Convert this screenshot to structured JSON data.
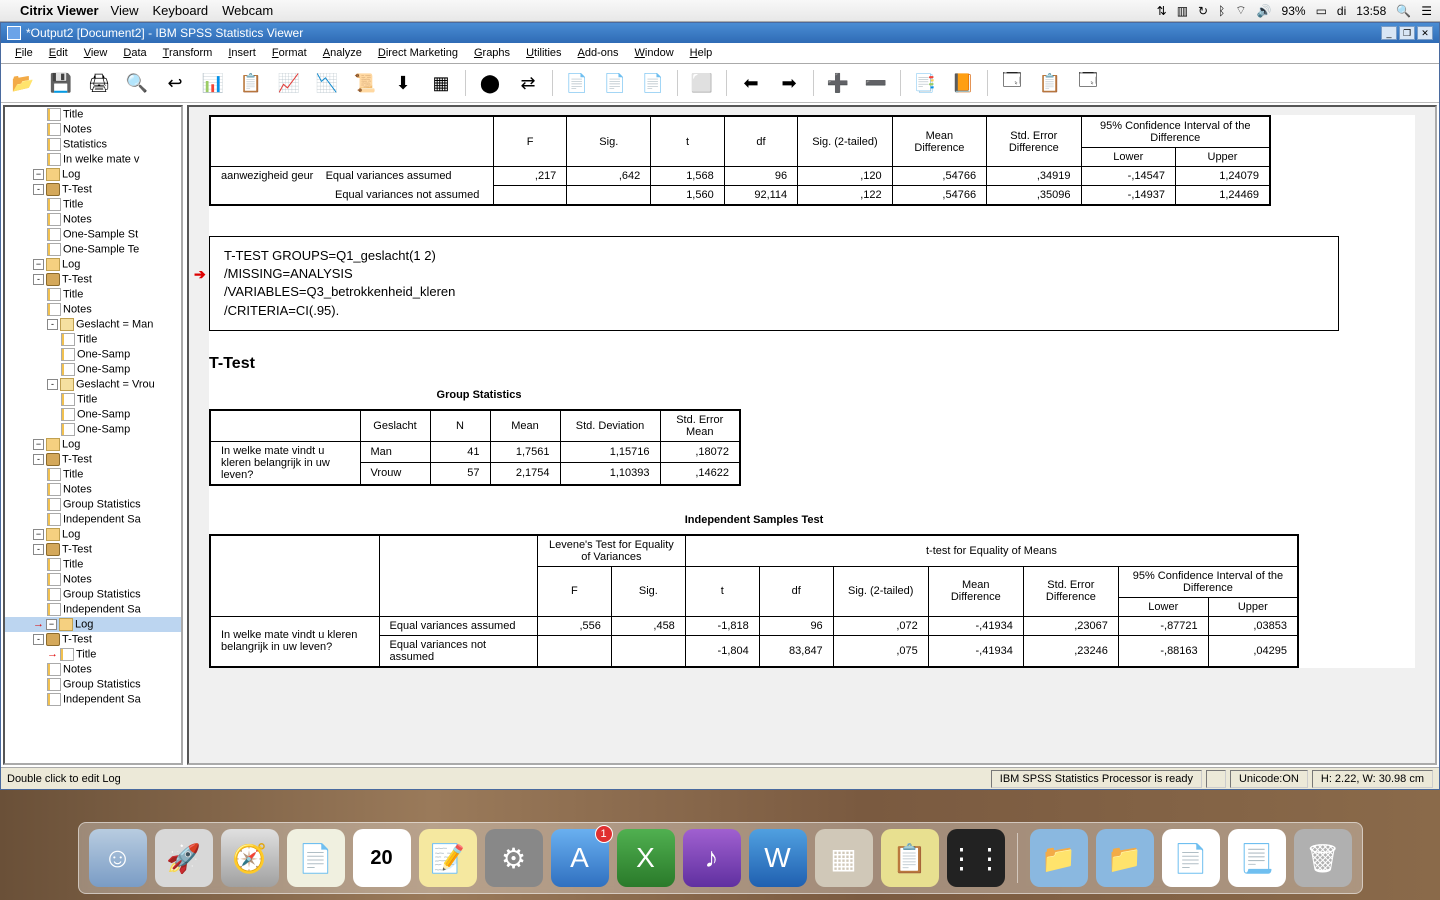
{
  "mac": {
    "app": "Citrix Viewer",
    "menus": [
      "View",
      "Keyboard",
      "Webcam"
    ],
    "battery": "93%",
    "day": "di",
    "time": "13:58"
  },
  "window": {
    "title": "*Output2 [Document2] - IBM SPSS Statistics Viewer"
  },
  "menus": [
    "File",
    "Edit",
    "View",
    "Data",
    "Transform",
    "Insert",
    "Format",
    "Analyze",
    "Direct Marketing",
    "Graphs",
    "Utilities",
    "Add-ons",
    "Window",
    "Help"
  ],
  "tree": [
    {
      "d": 3,
      "ico": "page",
      "label": "Title"
    },
    {
      "d": 3,
      "ico": "page",
      "label": "Notes"
    },
    {
      "d": 3,
      "ico": "stat",
      "label": "Statistics"
    },
    {
      "d": 3,
      "ico": "stat",
      "label": "In welke mate v"
    },
    {
      "d": 2,
      "ico": "log",
      "label": "Log",
      "tog": ""
    },
    {
      "d": 2,
      "ico": "book",
      "label": "T-Test",
      "tog": "-"
    },
    {
      "d": 3,
      "ico": "page",
      "label": "Title"
    },
    {
      "d": 3,
      "ico": "page",
      "label": "Notes"
    },
    {
      "d": 3,
      "ico": "stat",
      "label": "One-Sample St"
    },
    {
      "d": 3,
      "ico": "stat",
      "label": "One-Sample Te"
    },
    {
      "d": 2,
      "ico": "log",
      "label": "Log",
      "tog": ""
    },
    {
      "d": 2,
      "ico": "book",
      "label": "T-Test",
      "tog": "-"
    },
    {
      "d": 3,
      "ico": "page",
      "label": "Title"
    },
    {
      "d": 3,
      "ico": "page",
      "label": "Notes"
    },
    {
      "d": 3,
      "ico": "folder",
      "label": "Geslacht = Man",
      "tog": "-"
    },
    {
      "d": 4,
      "ico": "page",
      "label": "Title"
    },
    {
      "d": 4,
      "ico": "stat",
      "label": "One-Samp"
    },
    {
      "d": 4,
      "ico": "stat",
      "label": "One-Samp"
    },
    {
      "d": 3,
      "ico": "folder",
      "label": "Geslacht = Vrou",
      "tog": "-"
    },
    {
      "d": 4,
      "ico": "page",
      "label": "Title"
    },
    {
      "d": 4,
      "ico": "stat",
      "label": "One-Samp"
    },
    {
      "d": 4,
      "ico": "stat",
      "label": "One-Samp"
    },
    {
      "d": 2,
      "ico": "log",
      "label": "Log",
      "tog": ""
    },
    {
      "d": 2,
      "ico": "book",
      "label": "T-Test",
      "tog": "-"
    },
    {
      "d": 3,
      "ico": "page",
      "label": "Title"
    },
    {
      "d": 3,
      "ico": "page",
      "label": "Notes"
    },
    {
      "d": 3,
      "ico": "stat",
      "label": "Group Statistics"
    },
    {
      "d": 3,
      "ico": "stat",
      "label": "Independent Sa"
    },
    {
      "d": 2,
      "ico": "log",
      "label": "Log",
      "tog": ""
    },
    {
      "d": 2,
      "ico": "book",
      "label": "T-Test",
      "tog": "-"
    },
    {
      "d": 3,
      "ico": "page",
      "label": "Title"
    },
    {
      "d": 3,
      "ico": "page",
      "label": "Notes"
    },
    {
      "d": 3,
      "ico": "stat",
      "label": "Group Statistics"
    },
    {
      "d": 3,
      "ico": "stat",
      "label": "Independent Sa"
    },
    {
      "d": 2,
      "ico": "log",
      "label": "Log",
      "tog": "",
      "sel": true,
      "arrow": true
    },
    {
      "d": 2,
      "ico": "book",
      "label": "T-Test",
      "tog": "-"
    },
    {
      "d": 3,
      "ico": "page",
      "label": "Title",
      "arrow": true
    },
    {
      "d": 3,
      "ico": "page",
      "label": "Notes"
    },
    {
      "d": 3,
      "ico": "stat",
      "label": "Group Statistics"
    },
    {
      "d": 3,
      "ico": "stat",
      "label": "Independent Sa"
    }
  ],
  "table1": {
    "ci_header": "95% Confidence Interval of the Difference",
    "cols": [
      "F",
      "Sig.",
      "t",
      "df",
      "Sig. (2-tailed)",
      "Mean Difference",
      "Std. Error Difference",
      "Lower",
      "Upper"
    ],
    "rowlabel": "aanwezigheid geur",
    "r1_assump": "Equal variances assumed",
    "r2_assump": "Equal variances not assumed",
    "r1": [
      ",217",
      ",642",
      "1,568",
      "96",
      ",120",
      ",54766",
      ",34919",
      "-,14547",
      "1,24079"
    ],
    "r2": [
      "",
      "",
      "1,560",
      "92,114",
      ",122",
      ",54766",
      ",35096",
      "-,14937",
      "1,24469"
    ]
  },
  "syntax": {
    "l1": "T-TEST GROUPS=Q1_geslacht(1 2)",
    "l2": "  /MISSING=ANALYSIS",
    "l3": "  /VARIABLES=Q3_betrokkenheid_kleren",
    "l4": "  /CRITERIA=CI(.95)."
  },
  "section_title": "T-Test",
  "group_stats": {
    "title": "Group Statistics",
    "cols": [
      "Geslacht",
      "N",
      "Mean",
      "Std. Deviation",
      "Std. Error Mean"
    ],
    "question": "In welke mate vindt u kleren belangrijk in uw leven?",
    "r1": [
      "Man",
      "41",
      "1,7561",
      "1,15716",
      ",18072"
    ],
    "r2": [
      "Vrouw",
      "57",
      "2,1754",
      "1,10393",
      ",14622"
    ]
  },
  "indep": {
    "title": "Independent Samples Test",
    "levene": "Levene's Test for Equality of Variances",
    "ttest": "t-test for Equality of Means",
    "ci_header": "95% Confidence Interval of the Difference",
    "cols": [
      "F",
      "Sig.",
      "t",
      "df",
      "Sig. (2-tailed)",
      "Mean Difference",
      "Std. Error Difference",
      "Lower",
      "Upper"
    ],
    "question": "In welke mate vindt u kleren belangrijk in uw leven?",
    "r1_assump": "Equal variances assumed",
    "r2_assump": "Equal variances not assumed",
    "r1": [
      ",556",
      ",458",
      "-1,818",
      "96",
      ",072",
      "-,41934",
      ",23067",
      "-,87721",
      ",03853"
    ],
    "r2": [
      "",
      "",
      "-1,804",
      "83,847",
      ",075",
      "-,41934",
      ",23246",
      "-,88163",
      ",04295"
    ]
  },
  "status": {
    "left": "Double click to edit Log",
    "processor": "IBM SPSS Statistics Processor is ready",
    "unicode": "Unicode:ON",
    "dims": "H: 2.22, W: 30.98 cm"
  },
  "toolbar_icons": [
    "📂",
    "💾",
    "🖨",
    "🔍",
    "↩",
    "📊",
    "📋",
    "📈",
    "📉",
    "📜",
    "⬇",
    "▦",
    "",
    "⬤",
    "⇄",
    "",
    "📄",
    "📄",
    "📄",
    "",
    "⬜",
    "",
    "⬅",
    "➡",
    "",
    "➕",
    "➖",
    "",
    "📑",
    "📙",
    "",
    "🗔",
    "📋",
    "🗔"
  ],
  "dock_icons": [
    {
      "bg": "linear-gradient(#b8cce0,#7a9cc5)",
      "glyph": "☺"
    },
    {
      "bg": "#d8d8d8",
      "glyph": "🚀"
    },
    {
      "bg": "linear-gradient(#e0e0e0,#a0a0a0)",
      "glyph": "🧭"
    },
    {
      "bg": "#f0f0e0",
      "glyph": "📄"
    },
    {
      "bg": "#fff",
      "glyph": "20",
      "txt": true
    },
    {
      "bg": "#f5e8a0",
      "glyph": "📝"
    },
    {
      "bg": "#888",
      "glyph": "⚙"
    },
    {
      "bg": "linear-gradient(#6ab0f0,#3070c0)",
      "glyph": "A",
      "badge": "1"
    },
    {
      "bg": "linear-gradient(#50b050,#2a7a2a)",
      "glyph": "X"
    },
    {
      "bg": "linear-gradient(#a060d0,#6030a0)",
      "glyph": "♪"
    },
    {
      "bg": "linear-gradient(#50a0e0,#2060b0)",
      "glyph": "W"
    },
    {
      "bg": "#d0c8b8",
      "glyph": "▦"
    },
    {
      "bg": "#e8e090",
      "glyph": "📋"
    },
    {
      "bg": "#222",
      "glyph": "⋮⋮"
    },
    {
      "bg": "#8ab8e0",
      "glyph": "📁",
      "sep_before": true
    },
    {
      "bg": "#8ab8e0",
      "glyph": "📁"
    },
    {
      "bg": "#fff",
      "glyph": "📄"
    },
    {
      "bg": "#fff",
      "glyph": "📃"
    },
    {
      "bg": "#b0b0b0",
      "glyph": "🗑"
    }
  ]
}
